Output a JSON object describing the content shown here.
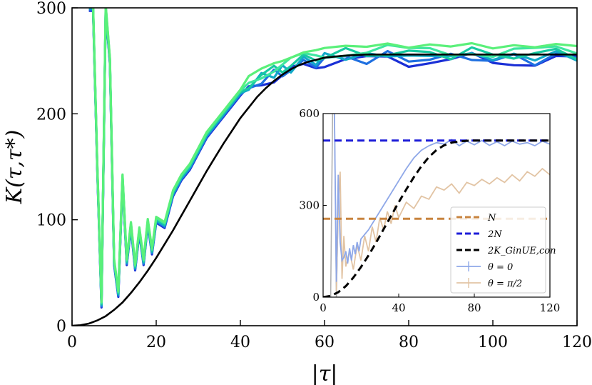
{
  "chart_data": {
    "main": {
      "type": "line",
      "xlabel": "|τ|",
      "ylabel": "K(τ,τ*)",
      "xlim": [
        0,
        120
      ],
      "ylim": [
        0,
        300
      ],
      "xticks": [
        0,
        20,
        40,
        60,
        80,
        100,
        120
      ],
      "yticks": [
        0,
        100,
        200,
        300
      ],
      "grid": false,
      "noisy_series_colors": [
        "#1a2fd6",
        "#1e6fe0",
        "#12a9c8",
        "#18c9a0",
        "#3ee6a0",
        "#5af07a"
      ],
      "noisy_series": [
        {
          "x": [
            4,
            5,
            6,
            7,
            8,
            9,
            10,
            11,
            12,
            13,
            14,
            15,
            16,
            17,
            18,
            19,
            20,
            22,
            24,
            26,
            28,
            30,
            32,
            35,
            38,
            40,
            42,
            45,
            48,
            50,
            52,
            55,
            58,
            60,
            65,
            70,
            75,
            80,
            85,
            90,
            95,
            100,
            105,
            110,
            115,
            120
          ],
          "y": [
            300,
            300,
            150,
            20,
            300,
            250,
            60,
            30,
            140,
            60,
            95,
            55,
            90,
            60,
            98,
            70,
            100,
            95,
            125,
            140,
            150,
            165,
            180,
            195,
            210,
            220,
            228,
            235,
            240,
            242,
            245,
            250,
            252,
            254,
            256,
            255,
            258,
            254,
            257,
            255,
            258,
            253,
            256,
            254,
            257,
            255
          ]
        }
      ],
      "theory_curve": {
        "name": "",
        "color": "#000000",
        "x": [
          0,
          2,
          4,
          6,
          8,
          10,
          12,
          14,
          16,
          18,
          20,
          22,
          24,
          26,
          28,
          30,
          32,
          34,
          36,
          38,
          40,
          42,
          44,
          46,
          48,
          50,
          52,
          54,
          56,
          58,
          60,
          65,
          70,
          75,
          80,
          90,
          100,
          110,
          120
        ],
        "y": [
          0,
          0.5,
          2,
          5,
          9,
          15,
          22,
          31,
          41,
          52,
          64,
          77,
          90,
          104,
          118,
          132,
          146,
          159,
          172,
          184,
          196,
          206,
          216,
          224,
          231,
          237,
          242,
          246,
          249,
          251,
          253,
          255,
          256,
          256,
          256,
          256,
          256,
          256,
          256
        ]
      }
    },
    "inset": {
      "type": "line",
      "xlim": [
        0,
        120
      ],
      "ylim": [
        0,
        600
      ],
      "xticks": [
        0,
        40,
        80,
        120
      ],
      "yticks": [
        0,
        300,
        600
      ],
      "legend_position": "lower-right",
      "series": [
        {
          "name": "N",
          "style": "dashed",
          "color": "#c8843f",
          "x": [
            0,
            120
          ],
          "y": [
            256,
            256
          ]
        },
        {
          "name": "2N",
          "style": "dashed",
          "color": "#1d1dd8",
          "x": [
            0,
            120
          ],
          "y": [
            512,
            512
          ]
        },
        {
          "name": "2K_GinUE,con",
          "style": "dashed",
          "color": "#000000",
          "x": [
            0,
            4,
            8,
            12,
            16,
            20,
            24,
            28,
            32,
            36,
            40,
            44,
            48,
            52,
            56,
            60,
            64,
            68,
            72,
            76,
            80,
            90,
            100,
            110,
            120
          ],
          "y": [
            0,
            4,
            16,
            36,
            64,
            98,
            136,
            178,
            222,
            266,
            310,
            352,
            392,
            428,
            458,
            481,
            496,
            505,
            509,
            511,
            512,
            512,
            512,
            512,
            512
          ]
        },
        {
          "name": "θ = 0",
          "style": "solid",
          "color": "#8fa8e8",
          "x": [
            6,
            7,
            8,
            9,
            10,
            11,
            12,
            13,
            14,
            15,
            16,
            17,
            18,
            19,
            20,
            24,
            28,
            32,
            36,
            40,
            44,
            48,
            52,
            56,
            60,
            64,
            68,
            72,
            76,
            80,
            84,
            88,
            92,
            96,
            100,
            104,
            108,
            112,
            116,
            120
          ],
          "y": [
            600,
            50,
            400,
            180,
            120,
            130,
            150,
            110,
            160,
            120,
            170,
            140,
            180,
            150,
            190,
            220,
            260,
            300,
            340,
            380,
            420,
            455,
            480,
            495,
            505,
            500,
            515,
            495,
            510,
            498,
            512,
            496,
            508,
            495,
            510,
            500,
            505,
            495,
            510,
            500
          ]
        },
        {
          "name": "θ = π/2",
          "style": "solid",
          "color": "#e2c4a4",
          "x": [
            7,
            8,
            9,
            10,
            11,
            12,
            14,
            16,
            18,
            20,
            22,
            24,
            26,
            28,
            30,
            32,
            34,
            36,
            38,
            40,
            44,
            48,
            52,
            56,
            60,
            64,
            68,
            72,
            76,
            80,
            84,
            88,
            92,
            96,
            100,
            104,
            108,
            112,
            116,
            120
          ],
          "y": [
            20,
            300,
            410,
            60,
            200,
            100,
            150,
            90,
            170,
            120,
            200,
            150,
            230,
            180,
            260,
            220,
            280,
            240,
            300,
            260,
            310,
            290,
            330,
            320,
            360,
            350,
            370,
            340,
            375,
            365,
            385,
            370,
            390,
            375,
            400,
            380,
            410,
            395,
            420,
            400
          ]
        }
      ],
      "legend": [
        "N",
        "2N",
        "2K_GinUE,con",
        "θ = 0",
        "θ = π/2"
      ]
    }
  }
}
